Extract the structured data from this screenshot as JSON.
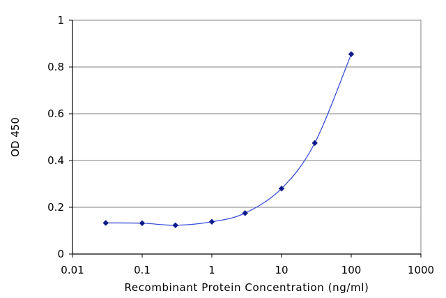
{
  "chart_data": {
    "type": "line",
    "title": "",
    "xlabel": "Recombinant Protein Concentration (ng/ml)",
    "ylabel": "OD 450",
    "x_scale": "log",
    "xlim": [
      0.01,
      1000
    ],
    "ylim": [
      0,
      1
    ],
    "x_ticks": [
      "0.01",
      "0.1",
      "1",
      "10",
      "100",
      "1000"
    ],
    "y_ticks": [
      "0",
      "0.2",
      "0.4",
      "0.6",
      "0.8",
      "1"
    ],
    "grid": "horizontal",
    "legend": "none",
    "series": [
      {
        "color": "#3b4fd8",
        "marker_color": "#0d1a8c",
        "x": [
          0.03,
          0.1,
          0.3,
          1,
          3,
          10,
          30,
          100
        ],
        "y": [
          0.133,
          0.132,
          0.123,
          0.138,
          0.175,
          0.28,
          0.475,
          0.855
        ]
      }
    ]
  }
}
